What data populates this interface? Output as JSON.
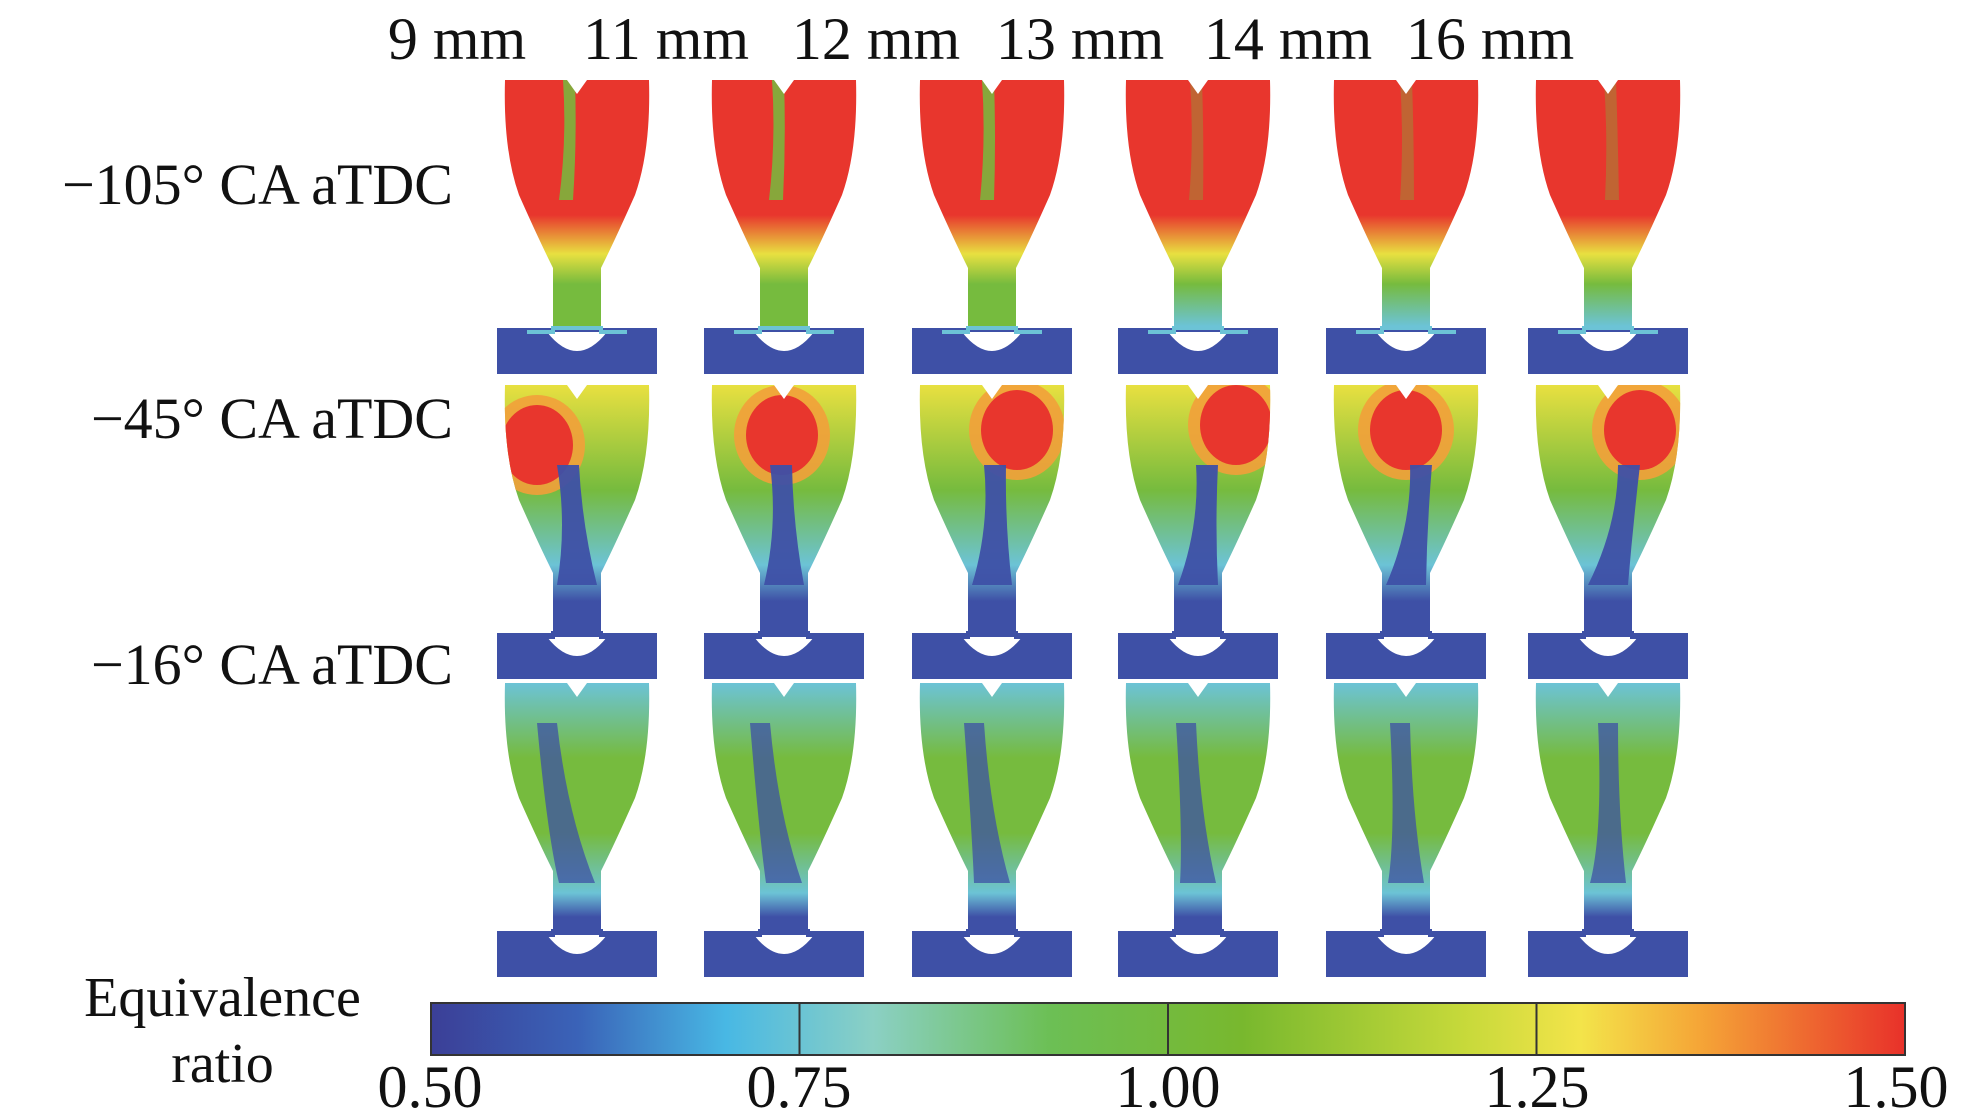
{
  "figure": {
    "columns": [
      "9 mm",
      "11 mm",
      "12 mm",
      "13 mm",
      "14 mm",
      "16 mm"
    ],
    "rows": [
      "−105° CA aTDC",
      "−45° CA aTDC",
      "−16° CA aTDC"
    ]
  },
  "colorbar": {
    "title_line1": "Equivalence",
    "title_line2": "ratio",
    "min": 0.5,
    "max": 1.5,
    "ticks": [
      "0.50",
      "0.75",
      "1.00",
      "1.25",
      "1.50"
    ],
    "tick_values": [
      0.5,
      0.75,
      1.0,
      1.25,
      1.5
    ],
    "stops": [
      {
        "value": 0.5,
        "color": "#3b3f97"
      },
      {
        "value": 0.6,
        "color": "#3a63b8"
      },
      {
        "value": 0.7,
        "color": "#48b8e4"
      },
      {
        "value": 0.8,
        "color": "#8bd0c4"
      },
      {
        "value": 0.92,
        "color": "#6cbf55"
      },
      {
        "value": 1.05,
        "color": "#78b82e"
      },
      {
        "value": 1.2,
        "color": "#c6d93a"
      },
      {
        "value": 1.28,
        "color": "#f3e44a"
      },
      {
        "value": 1.36,
        "color": "#f5a637"
      },
      {
        "value": 1.5,
        "color": "#e8312a"
      }
    ]
  },
  "colors": {
    "rich": "#e8362d",
    "orange": "#f2a03a",
    "yellow": "#e8e040",
    "green": "#76bb3e",
    "cyan": "#6cc3d6",
    "blue": "#3e50a6",
    "prechamber_stoich": "#7fc04a"
  }
}
